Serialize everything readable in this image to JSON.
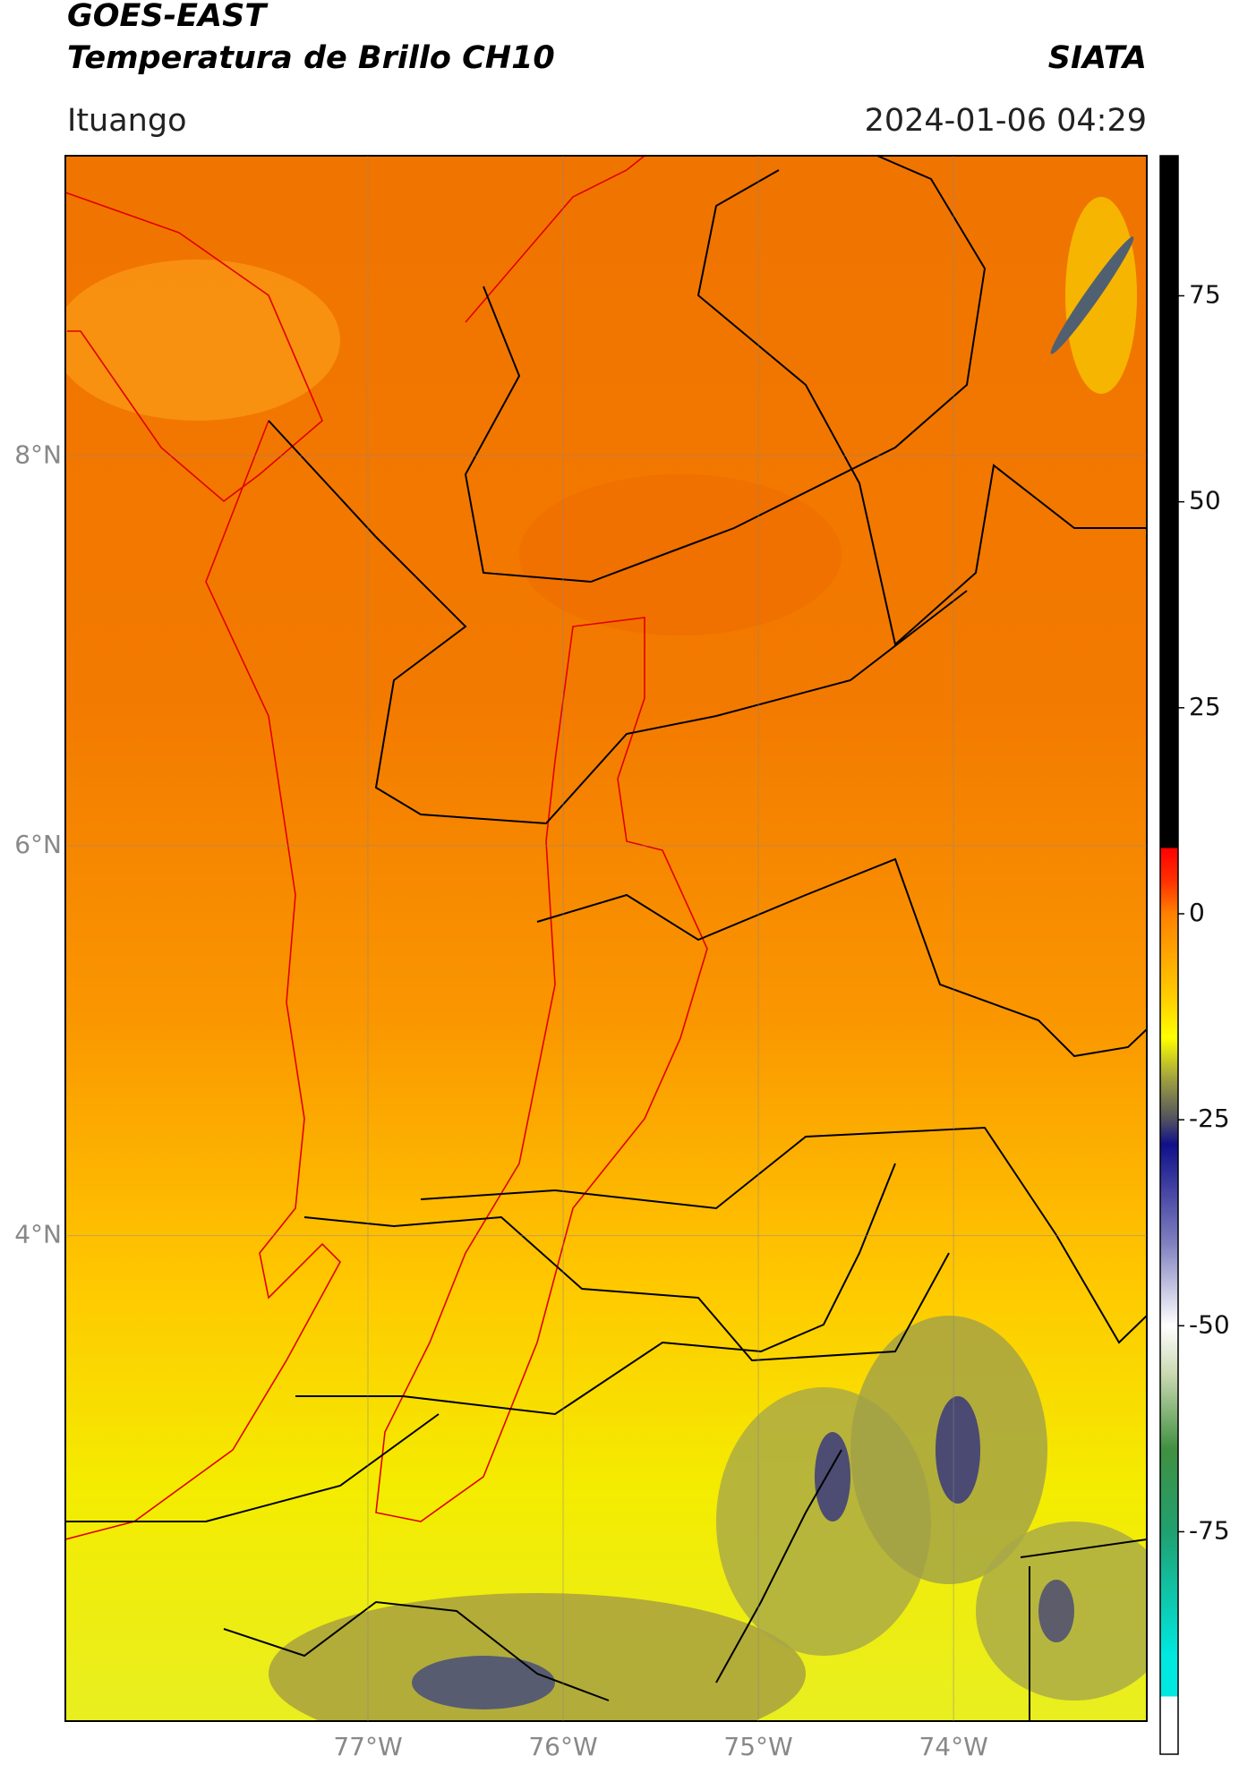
{
  "header": {
    "title": "GOES-EAST",
    "subtitle": "Temperatura de Brillo CH10",
    "brand": "SIATA",
    "location": "Ituango",
    "datetime": "2024-01-06 04:29"
  },
  "map": {
    "lat_lim": [
      1.51,
      9.54
    ],
    "lon_lim": [
      -78.55,
      -73.01
    ],
    "lat_ticks": [
      {
        "value": 8,
        "label": "8°N"
      },
      {
        "value": 6,
        "label": "6°N"
      },
      {
        "value": 4,
        "label": "4°N"
      }
    ],
    "lon_ticks": [
      {
        "value": -77,
        "label": "77°W"
      },
      {
        "value": -76,
        "label": "76°W"
      },
      {
        "value": -75,
        "label": "75°W"
      },
      {
        "value": -74,
        "label": "74°W"
      }
    ],
    "grid": true
  },
  "colorbar": {
    "lim": [
      -102,
      92
    ],
    "ticks": [
      75,
      50,
      25,
      0,
      -25,
      -50,
      -75
    ],
    "colormap": [
      [
        92,
        "#000000"
      ],
      [
        8,
        "#000000"
      ],
      [
        8,
        "#ff0000"
      ],
      [
        4,
        "#ff3000"
      ],
      [
        0,
        "#ff8000"
      ],
      [
        -10,
        "#ffcc00"
      ],
      [
        -15,
        "#ffff00"
      ],
      [
        -20,
        "#a0a040"
      ],
      [
        -25,
        "#505060"
      ],
      [
        -28,
        "#10108a"
      ],
      [
        -40,
        "#8080c0"
      ],
      [
        -50,
        "#ffffff"
      ],
      [
        -56,
        "#c8d8b0"
      ],
      [
        -65,
        "#409040"
      ],
      [
        -75,
        "#20a070"
      ],
      [
        -90,
        "#00e8e0"
      ],
      [
        -95,
        "#00e8e0"
      ],
      [
        -95,
        "#ffffff"
      ],
      [
        -102,
        "#ffffff"
      ]
    ]
  }
}
